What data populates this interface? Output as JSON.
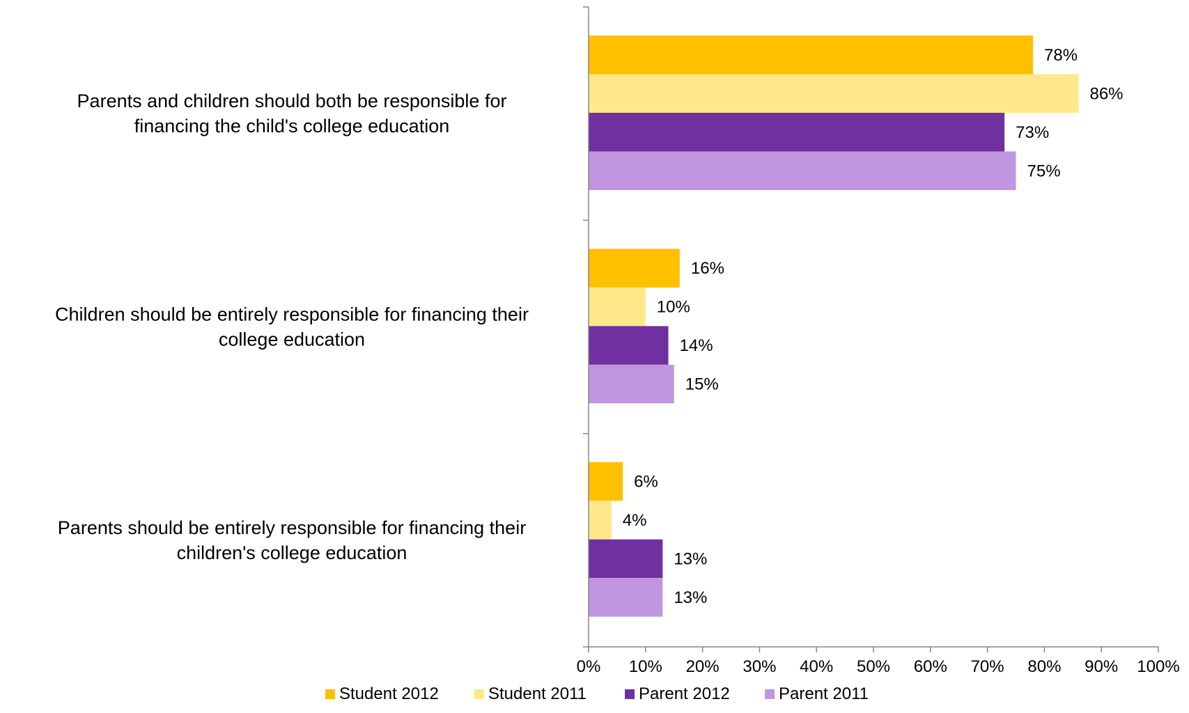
{
  "chart_data": {
    "type": "bar",
    "orientation": "horizontal",
    "categories": [
      "Parents and children should both be responsible for financing the child's college education",
      "Children should be entirely responsible for financing their college education",
      "Parents should be entirely responsible for financing their children's college education"
    ],
    "category_lines": [
      [
        "Parents and children should both be responsible for",
        "financing the child's college education"
      ],
      [
        "Children should be entirely responsible for financing their",
        "college education"
      ],
      [
        "Parents should be entirely responsible for financing their",
        "children's college education"
      ]
    ],
    "series": [
      {
        "name": "Student 2012",
        "color": "#FFC000",
        "values": [
          78,
          16,
          6
        ],
        "labels": [
          "78%",
          "16%",
          "6%"
        ]
      },
      {
        "name": "Student 2011",
        "color": "#FFE88A",
        "values": [
          86,
          10,
          4
        ],
        "labels": [
          "86%",
          "10%",
          "4%"
        ]
      },
      {
        "name": "Parent 2012",
        "color": "#7030A0",
        "values": [
          73,
          14,
          13
        ],
        "labels": [
          "73%",
          "14%",
          "13%"
        ]
      },
      {
        "name": "Parent 2011",
        "color": "#BF96DF",
        "values": [
          75,
          15,
          13
        ],
        "labels": [
          "75%",
          "15%",
          "13%"
        ]
      }
    ],
    "x_ticks": [
      0,
      10,
      20,
      30,
      40,
      50,
      60,
      70,
      80,
      90,
      100
    ],
    "x_tick_labels": [
      "0%",
      "10%",
      "20%",
      "30%",
      "40%",
      "50%",
      "60%",
      "70%",
      "80%",
      "90%",
      "100%"
    ],
    "xlim": [
      0,
      100
    ],
    "xlabel": "",
    "ylabel": "",
    "title": "",
    "grid": false,
    "legend_position": "bottom"
  }
}
